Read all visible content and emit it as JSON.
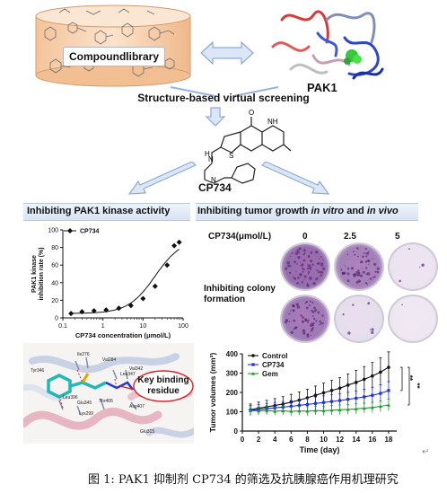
{
  "compound_library": {
    "label": "Compoundlibrary"
  },
  "target": {
    "label": "PAK1"
  },
  "screening": {
    "label": "Structure-based virtual screening"
  },
  "molecule": {
    "name": "CP734",
    "atoms": {
      "o": "O",
      "nh": "NH",
      "s": "S",
      "h": "H",
      "n1": "N",
      "n2": "N"
    }
  },
  "left_panel": {
    "title": "Inhibiting PAK1 kinase activity",
    "legend": "CP734",
    "docking": {
      "residues": [
        "Ile276",
        "Val284",
        "Tyr346",
        "Leu396",
        "Glu345",
        "Lys299",
        "Val342",
        "Leu347",
        "Thr406",
        "Asp407",
        "Glu315"
      ],
      "callout": "Key binding residue"
    }
  },
  "right_panel": {
    "title_a": "Inhibiting tumor growth ",
    "title_b": "in vitro",
    "title_c": " and ",
    "title_d": "in vivo",
    "colony": {
      "dose_label": "CP734(μmol/L)",
      "doses": [
        "0",
        "2.5",
        "5"
      ],
      "label_line1": "Inhibiting colony",
      "label_line2": "formation",
      "densities": [
        [
          0.95,
          0.8,
          0.05
        ],
        [
          0.85,
          0.1,
          0.02
        ]
      ]
    },
    "significance": [
      "**",
      "**"
    ]
  },
  "chart_data": [
    {
      "type": "scatter",
      "title": "",
      "xlabel": "CP734 concentration (μmol/L)",
      "ylabel": "PAK1 kinase inhibition rate (%)",
      "ylabel_lines": [
        "PAK1 kinase",
        "inhibition rate (%)"
      ],
      "xscale": "log",
      "xlim": [
        0.1,
        100
      ],
      "ylim": [
        0,
        100
      ],
      "xticks": [
        0.1,
        1,
        10,
        100
      ],
      "xtick_labels": [
        "0.1",
        "1",
        "10",
        "100"
      ],
      "yticks": [
        0,
        20,
        40,
        60,
        80,
        100
      ],
      "ytick_labels": [
        "0",
        "20",
        "40",
        "60",
        "80",
        "100"
      ],
      "grid": false,
      "legend": "top-left",
      "series": [
        {
          "name": "CP734",
          "x": [
            0.16,
            0.3,
            0.6,
            1.2,
            2.5,
            5,
            10,
            20,
            40,
            60,
            80
          ],
          "y": [
            5,
            7,
            8,
            9,
            11,
            14,
            22,
            36,
            60,
            82,
            86
          ]
        }
      ]
    },
    {
      "type": "line",
      "title": "",
      "xlabel": "Time (day)",
      "ylabel": "Tumor volumes (mm³)",
      "xlim": [
        0,
        19
      ],
      "ylim": [
        0,
        400
      ],
      "xticks": [
        0,
        2,
        4,
        6,
        8,
        10,
        12,
        14,
        16,
        18
      ],
      "xtick_labels": [
        "0",
        "2",
        "4",
        "6",
        "8",
        "10",
        "12",
        "14",
        "16",
        "18"
      ],
      "yticks": [
        0,
        100,
        200,
        300,
        400
      ],
      "ytick_labels": [
        "0",
        "100",
        "200",
        "300",
        "400"
      ],
      "grid": false,
      "legend": "top-left",
      "x": [
        1,
        2,
        3,
        4,
        5,
        6,
        7,
        8,
        9,
        10,
        11,
        12,
        13,
        14,
        15,
        16,
        17,
        18
      ],
      "series": [
        {
          "name": "Control",
          "color": "#111111",
          "values": [
            110,
            118,
            125,
            132,
            140,
            150,
            160,
            172,
            185,
            198,
            210,
            222,
            238,
            252,
            268,
            285,
            305,
            330
          ],
          "errors": [
            30,
            32,
            34,
            36,
            38,
            40,
            42,
            45,
            48,
            50,
            52,
            55,
            58,
            62,
            66,
            70,
            75,
            80
          ]
        },
        {
          "name": "CP734",
          "color": "#1f2fd6",
          "values": [
            108,
            112,
            116,
            120,
            124,
            128,
            133,
            138,
            143,
            148,
            153,
            158,
            164,
            170,
            177,
            185,
            195,
            210
          ],
          "errors": [
            25,
            26,
            27,
            28,
            29,
            30,
            31,
            32,
            33,
            34,
            35,
            36,
            37,
            38,
            40,
            42,
            44,
            46
          ]
        },
        {
          "name": "Gem",
          "color": "#1f9a2e",
          "values": [
            105,
            104,
            106,
            103,
            105,
            102,
            104,
            103,
            106,
            105,
            108,
            110,
            112,
            115,
            118,
            122,
            128,
            135
          ],
          "errors": [
            20,
            20,
            21,
            21,
            22,
            22,
            22,
            23,
            23,
            24,
            24,
            25,
            25,
            26,
            26,
            27,
            28,
            30
          ]
        }
      ]
    }
  ],
  "figure_caption": "图 1: PAK1 抑制剂 CP734 的筛选及抗胰腺癌作用机理研究"
}
